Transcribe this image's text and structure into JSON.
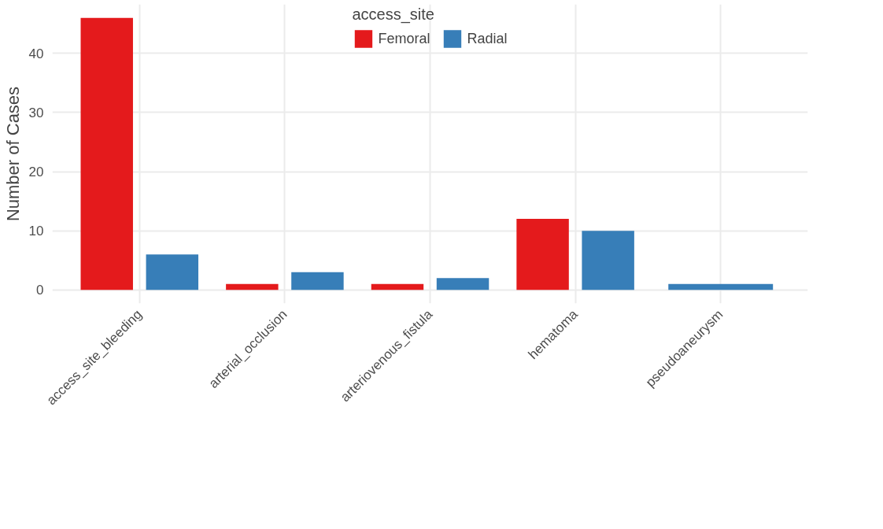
{
  "chart_data": {
    "type": "bar",
    "ylabel": "Number of Cases",
    "legend_title": "access_site",
    "categories": [
      "access_site_bleeding",
      "arterial_occlusion",
      "arteriovenous_fistula",
      "hematoma",
      "pseudoaneurysm"
    ],
    "series": [
      {
        "name": "Femoral",
        "color": "#e41a1c",
        "values": [
          46,
          1,
          1,
          12,
          null
        ]
      },
      {
        "name": "Radial",
        "color": "#377eb8",
        "values": [
          6,
          3,
          2,
          10,
          1
        ]
      }
    ],
    "ylim": [
      -2.3,
      48.3
    ],
    "yticks": [
      0,
      10,
      20,
      30,
      40
    ],
    "grid": true,
    "legend": "top"
  }
}
